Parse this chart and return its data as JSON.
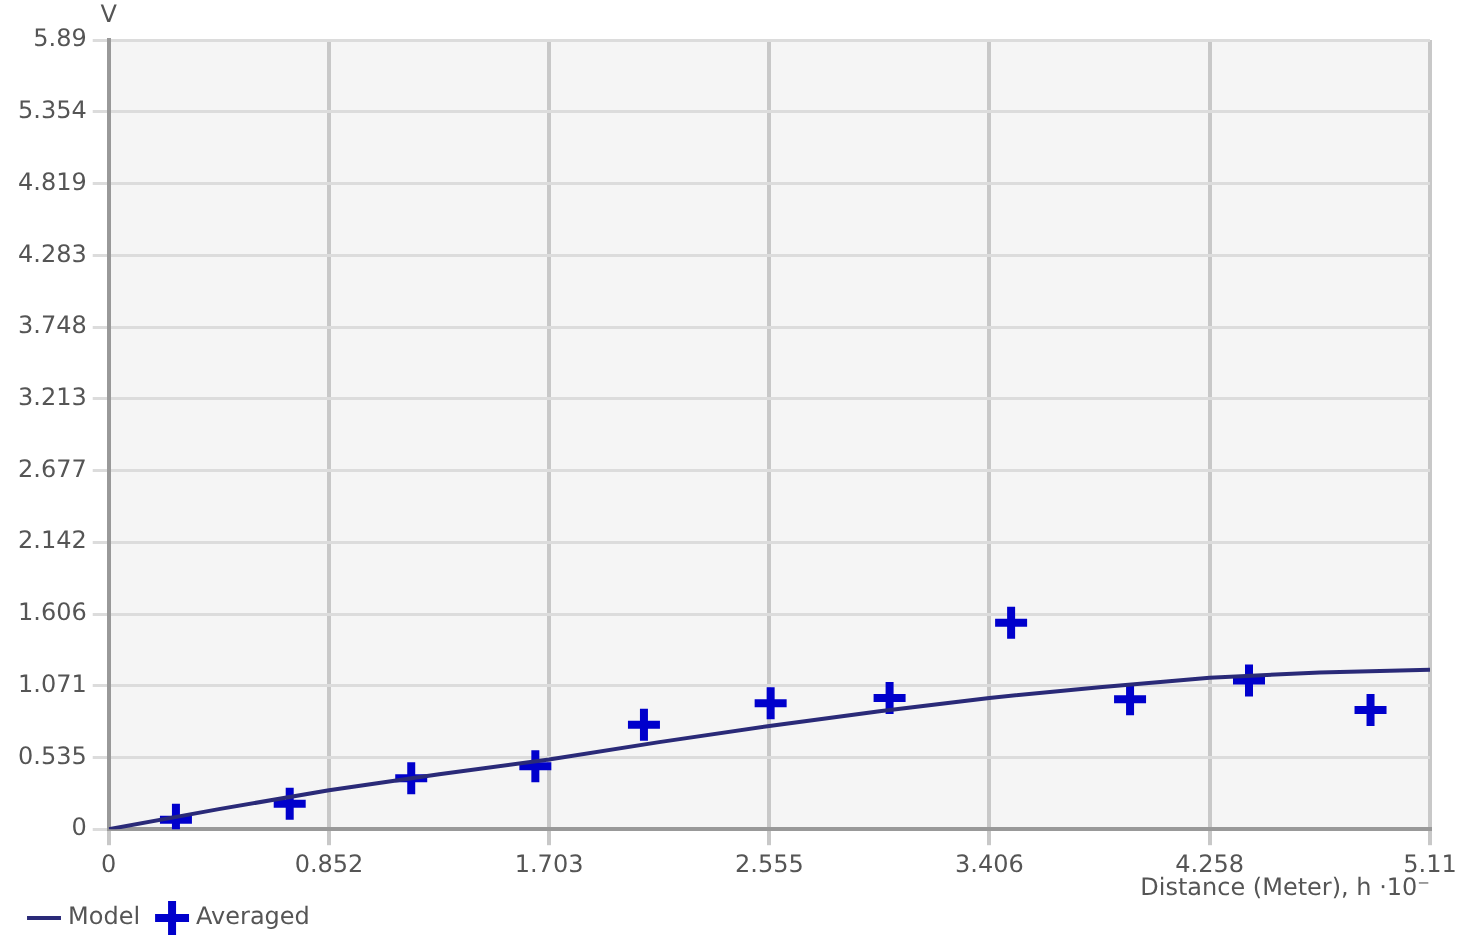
{
  "chart_data": {
    "type": "line",
    "xlabel": "Distance (Meter), h ·10⁻",
    "ylabel": "V",
    "xlim": [
      0,
      5.11
    ],
    "xticks": [
      0,
      0.852,
      1.703,
      2.555,
      3.406,
      4.258,
      5.11
    ],
    "ylim": [
      0,
      5.89
    ],
    "yticks": [
      0,
      0.535,
      1.071,
      1.606,
      2.142,
      2.677,
      3.213,
      3.748,
      4.283,
      4.819,
      5.354,
      5.89
    ],
    "grid": true,
    "legend": "bottom left",
    "series": [
      {
        "name": "Model",
        "type": "line",
        "color": "#2a2a78",
        "marker": "none",
        "line_style": "solid",
        "x": [
          0,
          0.426,
          0.852,
          1.278,
          1.703,
          2.129,
          2.555,
          2.981,
          3.406,
          3.832,
          4.258,
          4.684,
          5.11
        ],
        "values": [
          0,
          0.15,
          0.29,
          0.41,
          0.52,
          0.65,
          0.77,
          0.88,
          0.98,
          1.06,
          1.13,
          1.17,
          1.19
        ]
      },
      {
        "name": "Averaged",
        "type": "scatter",
        "color": "#0000cc",
        "marker": "cross",
        "x": [
          0.26,
          0.7,
          1.17,
          1.65,
          2.07,
          2.56,
          3.02,
          3.49,
          3.95,
          4.41,
          4.88
        ],
        "values": [
          0.07,
          0.19,
          0.38,
          0.47,
          0.78,
          0.94,
          0.98,
          1.54,
          0.97,
          1.11,
          0.89
        ]
      }
    ]
  }
}
